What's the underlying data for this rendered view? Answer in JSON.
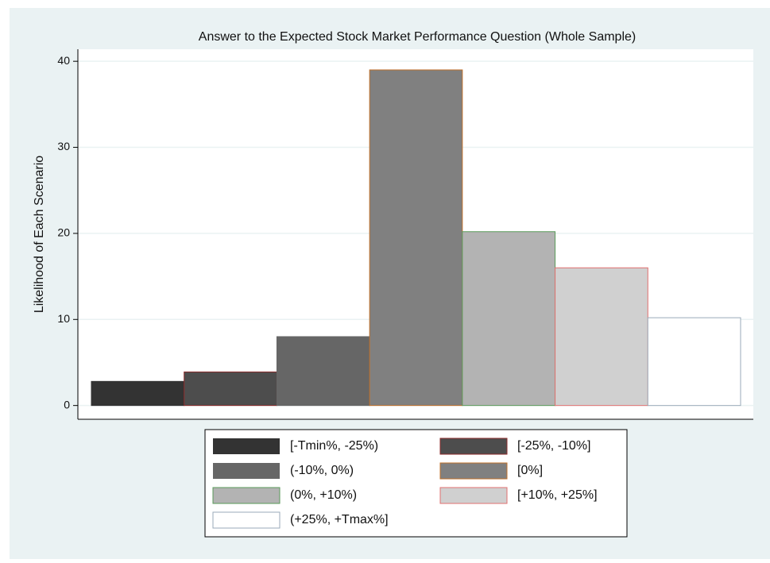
{
  "chart_data": {
    "type": "bar",
    "title": "Answer to the Expected Stock Market Performance Question (Whole Sample)",
    "y_label": "Likelihood of Each Scenario",
    "categories": [
      null
    ],
    "series": [
      {
        "name": "[-Tmin%, -25%)",
        "color": "#333333",
        "edgecolor": "#333333",
        "values": [
          2.8
        ]
      },
      {
        "name": "[-25%, -10%]",
        "color": "#4d4d4d",
        "edgecolor": "#8b2a2a",
        "values": [
          3.9
        ]
      },
      {
        "name": "(-10%, 0%)",
        "color": "#666666",
        "edgecolor": "#666666",
        "values": [
          8.0
        ]
      },
      {
        "name": "[0%]",
        "color": "#808080",
        "edgecolor": "#c0702a",
        "values": [
          39.0
        ]
      },
      {
        "name": "(0%, +10%)",
        "color": "#b3b3b3",
        "edgecolor": "#5a9a5a",
        "values": [
          20.2
        ]
      },
      {
        "name": "[+10%, +25%]",
        "color": "#d0d0d0",
        "edgecolor": "#e07070",
        "values": [
          16.0
        ]
      },
      {
        "name": "(+25%, +Tmax%]",
        "color": "#ffffff",
        "edgecolor": "#9aaab8",
        "values": [
          10.2
        ]
      }
    ],
    "ylim": [
      -1.6,
      41.4
    ],
    "yticks": [
      0,
      10,
      20,
      30,
      40
    ],
    "grid": true,
    "legend": "bottom"
  }
}
